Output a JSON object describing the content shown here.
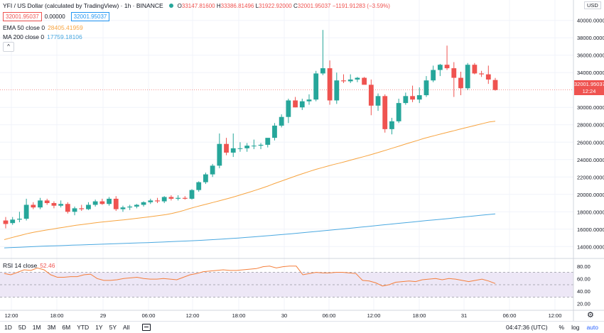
{
  "header": {
    "title": "YFI / US Dollar (calculated by TradingView) · 1h · BINANCE",
    "open_label": "O",
    "open": "33147.81600",
    "high_label": "H",
    "high": "33386.81496",
    "low_label": "L",
    "low": "31922.92000",
    "close_label": "C",
    "close": "32001.95037",
    "change": "−1191.91283 (−3.59%)",
    "bid": "32001.95037",
    "spread": "0.00000",
    "ask": "32001.95037"
  },
  "indicators": {
    "ema_label": "EMA 50 close 0",
    "ema_value": "28405.41959",
    "ma_label": "MA 200 close 0",
    "ma_value": "17759.18106",
    "rsi_label": "RSI 14 close",
    "rsi_value": "52.46",
    "collapse_icon": "^"
  },
  "price_axis": {
    "currency": "USD",
    "ticks": [
      "40000.000000",
      "38000.000000",
      "36000.000000",
      "34000.000000",
      "30000.000000",
      "28000.000000",
      "26000.000000",
      "24000.000000",
      "22000.000000",
      "20000.000000",
      "18000.000000",
      "16000.000000",
      "14000.000000"
    ],
    "last_price": "32001.95037",
    "countdown": "12:24"
  },
  "rsi_axis": {
    "ticks": [
      "80.00",
      "60.00",
      "40.00",
      "20.00"
    ]
  },
  "time_axis": {
    "ticks": [
      "12:00",
      "18:00",
      "29",
      "06:00",
      "12:00",
      "18:00",
      "30",
      "06:00",
      "12:00",
      "18:00",
      "31",
      "06:00",
      "12:00"
    ]
  },
  "bottom_bar": {
    "ranges": [
      "1D",
      "5D",
      "1M",
      "3M",
      "6M",
      "YTD",
      "1Y",
      "5Y",
      "All"
    ],
    "clock": "04:47:36 (UTC)",
    "percent": "%",
    "log": "log",
    "auto": "auto"
  },
  "colors": {
    "up": "#26a69a",
    "down": "#ef5350",
    "ema": "#f7a440",
    "ma": "#4aa8e0",
    "rsi": "#f57f3b",
    "rsi_band": "#ede7f6"
  },
  "chart_data": {
    "type": "candlestick",
    "price_ylim": [
      12800,
      41200
    ],
    "rsi_ylim": [
      10,
      90
    ],
    "candles": [
      {
        "o": 17000,
        "h": 17400,
        "l": 16100,
        "c": 16600
      },
      {
        "o": 16700,
        "h": 17400,
        "l": 16500,
        "c": 17100
      },
      {
        "o": 17100,
        "h": 18000,
        "l": 16800,
        "c": 17200
      },
      {
        "o": 17200,
        "h": 19500,
        "l": 17000,
        "c": 18800
      },
      {
        "o": 18800,
        "h": 19100,
        "l": 18300,
        "c": 18500
      },
      {
        "o": 18500,
        "h": 19600,
        "l": 18300,
        "c": 19300
      },
      {
        "o": 19300,
        "h": 19500,
        "l": 18800,
        "c": 19000
      },
      {
        "o": 19000,
        "h": 19200,
        "l": 18400,
        "c": 18700
      },
      {
        "o": 18700,
        "h": 19300,
        "l": 18500,
        "c": 18900
      },
      {
        "o": 18900,
        "h": 19100,
        "l": 17800,
        "c": 18000
      },
      {
        "o": 18000,
        "h": 18600,
        "l": 17600,
        "c": 18400
      },
      {
        "o": 18400,
        "h": 18800,
        "l": 18100,
        "c": 18300
      },
      {
        "o": 18300,
        "h": 19100,
        "l": 18200,
        "c": 18800
      },
      {
        "o": 18800,
        "h": 19400,
        "l": 18600,
        "c": 19200
      },
      {
        "o": 19200,
        "h": 19500,
        "l": 18800,
        "c": 18900
      },
      {
        "o": 18900,
        "h": 19700,
        "l": 18700,
        "c": 19500
      },
      {
        "o": 19500,
        "h": 19800,
        "l": 18100,
        "c": 18300
      },
      {
        "o": 18300,
        "h": 18700,
        "l": 18000,
        "c": 18500
      },
      {
        "o": 18500,
        "h": 18800,
        "l": 18200,
        "c": 18600
      },
      {
        "o": 18600,
        "h": 18900,
        "l": 18400,
        "c": 18800
      },
      {
        "o": 18800,
        "h": 19200,
        "l": 18600,
        "c": 19100
      },
      {
        "o": 19100,
        "h": 19500,
        "l": 18900,
        "c": 19300
      },
      {
        "o": 19300,
        "h": 19600,
        "l": 19000,
        "c": 19200
      },
      {
        "o": 19200,
        "h": 19800,
        "l": 19000,
        "c": 19700
      },
      {
        "o": 19700,
        "h": 19900,
        "l": 19300,
        "c": 19500
      },
      {
        "o": 19500,
        "h": 19900,
        "l": 19300,
        "c": 19600
      },
      {
        "o": 19600,
        "h": 19800,
        "l": 19400,
        "c": 19500
      },
      {
        "o": 19500,
        "h": 20600,
        "l": 19400,
        "c": 20500
      },
      {
        "o": 20500,
        "h": 21500,
        "l": 20300,
        "c": 21400
      },
      {
        "o": 21400,
        "h": 22500,
        "l": 21200,
        "c": 22300
      },
      {
        "o": 22300,
        "h": 23500,
        "l": 22000,
        "c": 23300
      },
      {
        "o": 23300,
        "h": 27000,
        "l": 23000,
        "c": 25800
      },
      {
        "o": 25800,
        "h": 26500,
        "l": 24500,
        "c": 24800
      },
      {
        "o": 24800,
        "h": 27000,
        "l": 24300,
        "c": 25300
      },
      {
        "o": 25300,
        "h": 26000,
        "l": 24900,
        "c": 25300
      },
      {
        "o": 25300,
        "h": 25900,
        "l": 24900,
        "c": 25600
      },
      {
        "o": 25600,
        "h": 26300,
        "l": 25200,
        "c": 25600
      },
      {
        "o": 25600,
        "h": 25900,
        "l": 25200,
        "c": 25700
      },
      {
        "o": 25700,
        "h": 26300,
        "l": 25400,
        "c": 26500
      },
      {
        "o": 26500,
        "h": 28200,
        "l": 26200,
        "c": 27900
      },
      {
        "o": 27900,
        "h": 29200,
        "l": 27700,
        "c": 28900
      },
      {
        "o": 28900,
        "h": 31000,
        "l": 28200,
        "c": 30800
      },
      {
        "o": 30800,
        "h": 31200,
        "l": 30000,
        "c": 30000
      },
      {
        "o": 30000,
        "h": 31000,
        "l": 29700,
        "c": 30700
      },
      {
        "o": 30700,
        "h": 31500,
        "l": 30300,
        "c": 30900
      },
      {
        "o": 30900,
        "h": 34200,
        "l": 30700,
        "c": 33900
      },
      {
        "o": 33900,
        "h": 38900,
        "l": 33700,
        "c": 34500
      },
      {
        "o": 34500,
        "h": 35400,
        "l": 30300,
        "c": 30800
      },
      {
        "o": 30800,
        "h": 34000,
        "l": 30400,
        "c": 33100
      },
      {
        "o": 33100,
        "h": 33800,
        "l": 32800,
        "c": 33000
      },
      {
        "o": 33000,
        "h": 33800,
        "l": 32800,
        "c": 33200
      },
      {
        "o": 33200,
        "h": 33500,
        "l": 32900,
        "c": 33400
      },
      {
        "o": 33400,
        "h": 33500,
        "l": 32800,
        "c": 32600
      },
      {
        "o": 32600,
        "h": 33200,
        "l": 29100,
        "c": 30200
      },
      {
        "o": 30200,
        "h": 31600,
        "l": 29600,
        "c": 31300
      },
      {
        "o": 31300,
        "h": 31500,
        "l": 27100,
        "c": 27500
      },
      {
        "o": 27500,
        "h": 28800,
        "l": 26900,
        "c": 28400
      },
      {
        "o": 28400,
        "h": 31000,
        "l": 28200,
        "c": 30500
      },
      {
        "o": 30500,
        "h": 31700,
        "l": 30300,
        "c": 31300
      },
      {
        "o": 31300,
        "h": 32500,
        "l": 30600,
        "c": 30900
      },
      {
        "o": 30900,
        "h": 32300,
        "l": 30500,
        "c": 31400
      },
      {
        "o": 31400,
        "h": 33600,
        "l": 31200,
        "c": 33100
      },
      {
        "o": 33100,
        "h": 34800,
        "l": 32900,
        "c": 34300
      },
      {
        "o": 34300,
        "h": 35000,
        "l": 33600,
        "c": 34900
      },
      {
        "o": 34900,
        "h": 37100,
        "l": 34300,
        "c": 34500
      },
      {
        "o": 34500,
        "h": 35200,
        "l": 31200,
        "c": 33400
      },
      {
        "o": 33400,
        "h": 34100,
        "l": 31400,
        "c": 32200
      },
      {
        "o": 32200,
        "h": 35100,
        "l": 32000,
        "c": 34900
      },
      {
        "o": 34900,
        "h": 35100,
        "l": 33800,
        "c": 33900
      },
      {
        "o": 33900,
        "h": 34200,
        "l": 33500,
        "c": 33800
      },
      {
        "o": 33800,
        "h": 34800,
        "l": 32700,
        "c": 33200
      },
      {
        "o": 33147.8,
        "h": 33386.8,
        "l": 31922.9,
        "c": 32002.0
      }
    ],
    "ema50": [
      14800,
      14990,
      15170,
      15340,
      15520,
      15660,
      15780,
      15900,
      16010,
      16120,
      16230,
      16340,
      16450,
      16540,
      16630,
      16720,
      16800,
      16870,
      16940,
      17010,
      17080,
      17160,
      17240,
      17320,
      17400,
      17490,
      17580,
      17680,
      17810,
      17970,
      18160,
      18380,
      18570,
      18750,
      18920,
      19100,
      19280,
      19460,
      19650,
      19850,
      20060,
      20270,
      20490,
      20720,
      20950,
      21210,
      21460,
      21700,
      21950,
      22190,
      22420,
      22650,
      22870,
      23060,
      23250,
      23430,
      23600,
      23780,
      23970,
      24150,
      24330,
      24520,
      24720,
      24930,
      25140,
      25350,
      25560,
      25780,
      25990,
      26200,
      26420,
      26600,
      26780,
      26960,
      27130,
      27300,
      27480,
      27650,
      27820,
      27990,
      28160,
      28320,
      28405
    ],
    "ma200": [
      13850,
      13890,
      13930,
      13970,
      14010,
      14040,
      14070,
      14100,
      14130,
      14160,
      14190,
      14220,
      14250,
      14280,
      14310,
      14340,
      14370,
      14400,
      14430,
      14460,
      14490,
      14520,
      14560,
      14600,
      14640,
      14680,
      14720,
      14770,
      14820,
      14870,
      14930,
      14990,
      15050,
      15120,
      15190,
      15260,
      15330,
      15400,
      15480,
      15560,
      15640,
      15720,
      15800,
      15880,
      15960,
      16040,
      16130,
      16220,
      16300,
      16390,
      16480,
      16560,
      16650,
      16740,
      16820,
      16910,
      17000,
      17080,
      17160,
      17240,
      17330,
      17420,
      17500,
      17590,
      17680,
      17759
    ],
    "rsi": [
      68,
      66,
      70,
      74,
      73,
      77,
      74,
      66,
      62,
      62,
      63,
      63,
      66,
      67,
      60,
      57,
      57,
      58,
      60,
      61,
      62,
      60,
      59,
      59,
      60,
      59,
      58,
      62,
      66,
      68,
      71,
      72,
      73,
      74,
      73,
      73,
      74,
      75,
      76,
      79,
      80,
      77,
      79,
      80,
      80,
      66,
      68,
      70,
      69,
      69,
      70,
      70,
      69,
      68,
      57,
      56,
      53,
      48,
      50,
      54,
      55,
      56,
      55,
      58,
      59,
      60,
      58,
      60,
      59,
      57,
      55,
      57,
      59,
      56,
      52
    ]
  }
}
